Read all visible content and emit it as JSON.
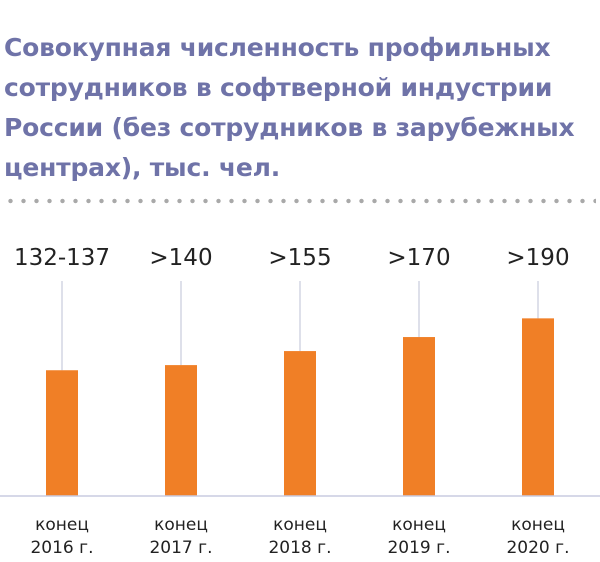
{
  "title": "Совокупная численность профильных\nсотрудников в софтверной индустрии\nРоссии (без сотрудников в зарубежных\nцентрах), тыс. чел.",
  "chart_data": {
    "type": "bar",
    "title": "Совокупная численность профильных сотрудников в софтверной индустрии России (без сотрудников в зарубежных центрах), тыс. чел.",
    "categories": [
      [
        "конец",
        "2016 г."
      ],
      [
        "конец",
        "2017 г."
      ],
      [
        "конец",
        "2018 г."
      ],
      [
        "конец",
        "2019 г."
      ],
      [
        "конец",
        "2020 г."
      ]
    ],
    "values": [
      134.5,
      140,
      155,
      170,
      190
    ],
    "data_labels": [
      "132-137",
      ">140",
      ">155",
      ">170",
      ">190"
    ],
    "ylim": [
      0,
      350
    ],
    "grid": false,
    "legend": "none",
    "bar_color": "#f07f26",
    "axis_color": "#c8cce0",
    "leader_color": "#d3d6e3"
  }
}
